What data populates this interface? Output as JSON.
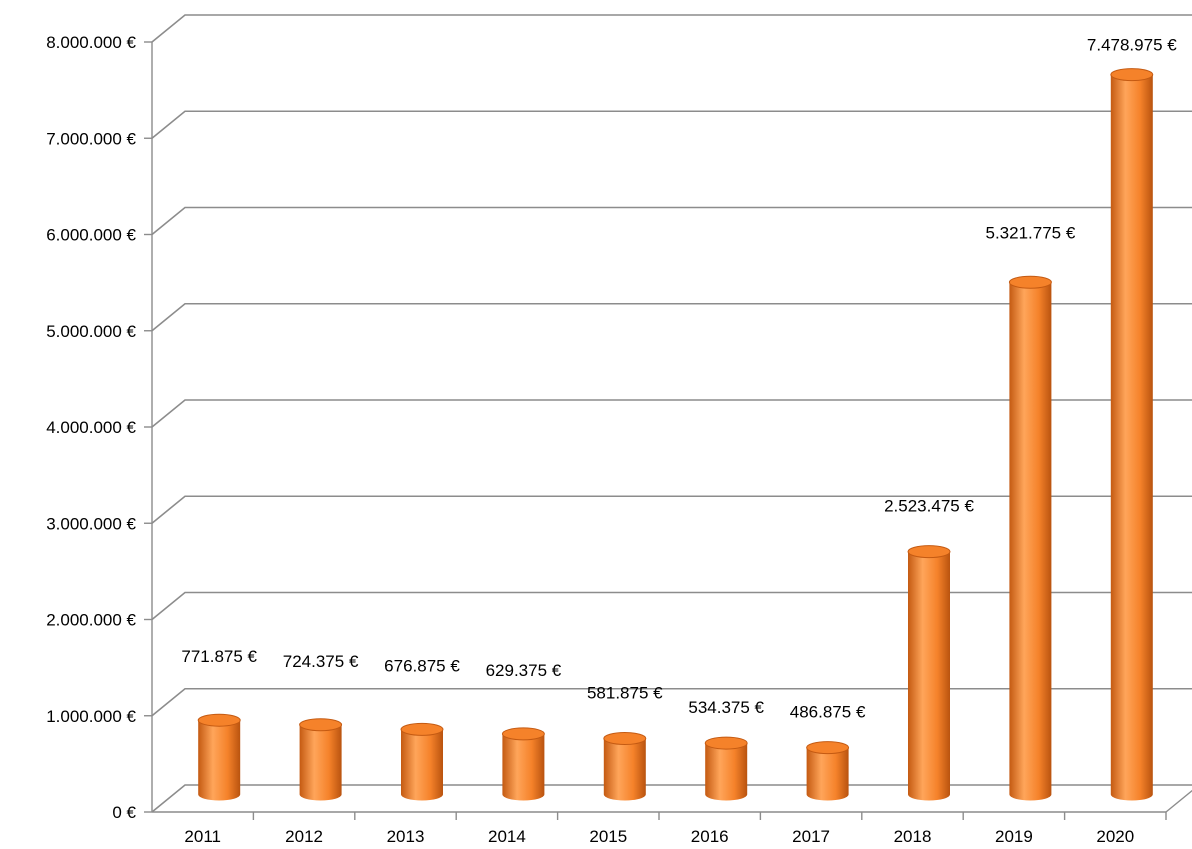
{
  "chart_data": {
    "type": "bar",
    "style": "3d-cylinder",
    "categories": [
      "2011",
      "2012",
      "2013",
      "2014",
      "2015",
      "2016",
      "2017",
      "2018",
      "2019",
      "2020"
    ],
    "values": [
      771875,
      724375,
      676875,
      629375,
      581875,
      534375,
      486875,
      2523475,
      5321775,
      7478975
    ],
    "data_labels": [
      "771.875 €",
      "724.375 €",
      "676.875 €",
      "629.375 €",
      "581.875 €",
      "534.375 €",
      "486.875 €",
      "2.523.475 €",
      "5.321.775 €",
      "7.478.975 €"
    ],
    "y_ticks": [
      "0 €",
      "1.000.000 €",
      "2.000.000 €",
      "3.000.000 €",
      "4.000.000 €",
      "5.000.000 €",
      "6.000.000 €",
      "7.000.000 €",
      "8.000.000 €"
    ],
    "title": "",
    "xlabel": "",
    "ylabel": "",
    "ylim": [
      0,
      8000000
    ],
    "grid": true,
    "legend": "none",
    "bar_color": "#f5822a",
    "bar_shadow": "#c45a12",
    "bar_highlight": "#ffb070",
    "grid_color": "#8c8c8c"
  }
}
